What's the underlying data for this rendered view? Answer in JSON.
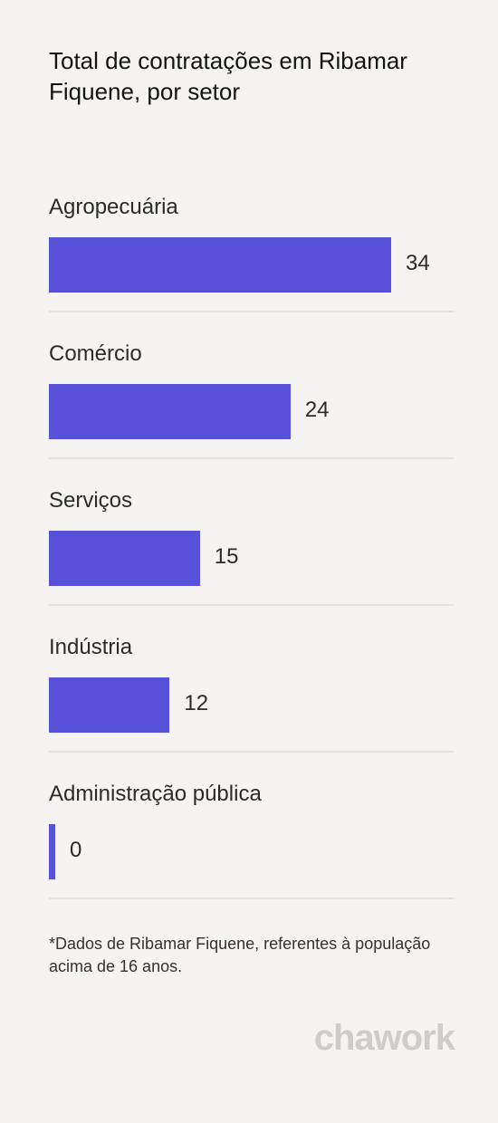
{
  "chart_data": {
    "type": "bar",
    "orientation": "horizontal",
    "title": "Total de contratações em Ribamar Fiquene, por setor",
    "categories": [
      "Agropecuária",
      "Comércio",
      "Serviços",
      "Indústria",
      "Administração pública"
    ],
    "values": [
      34,
      24,
      15,
      12,
      0
    ],
    "xlim": [
      0,
      40
    ],
    "bar_color": "#5651d8",
    "grid": false,
    "legend": false
  },
  "footnote": "*Dados de Ribamar Fiquene, referentes à população acima de 16 anos.",
  "brand": "chawork"
}
